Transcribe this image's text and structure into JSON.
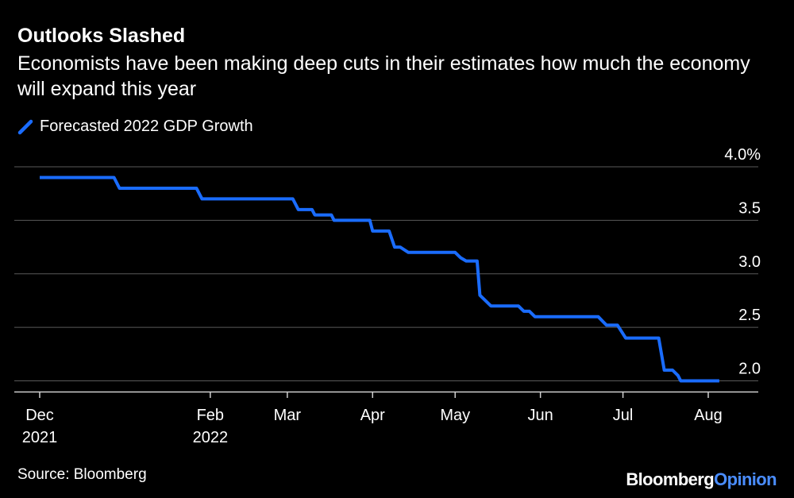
{
  "header": {
    "title": "Outlooks Slashed",
    "subtitle": "Economists have been making deep cuts in their estimates how much the economy will expand this year"
  },
  "legend": {
    "label": "Forecasted 2022 GDP Growth"
  },
  "footer": {
    "source": "Source: Bloomberg",
    "brand_part1": "Bloomberg",
    "brand_part2": "Opinion"
  },
  "colors": {
    "background": "#000000",
    "series": "#1a6cff",
    "grid": "#5a5a5a",
    "text": "#ffffff"
  },
  "chart_data": {
    "type": "line",
    "step": true,
    "title": "Outlooks Slashed",
    "subtitle": "Economists have been making deep cuts in their estimates how much the economy will expand this year",
    "xlabel": "",
    "ylabel": "",
    "y_axis_position": "right",
    "ylim": [
      1.9,
      4.0
    ],
    "y_ticks": [
      {
        "value": 2.0,
        "label": "2.0"
      },
      {
        "value": 2.5,
        "label": "2.5"
      },
      {
        "value": 3.0,
        "label": "3.0"
      },
      {
        "value": 3.5,
        "label": "3.5"
      },
      {
        "value": 4.0,
        "label": "4.0%"
      }
    ],
    "xlim": [
      "2021-11-30",
      "2022-08-31"
    ],
    "x_ticks": [
      {
        "date": "2021-12-01",
        "line1": "Dec",
        "line2": "2021"
      },
      {
        "date": "2022-02-01",
        "line1": "Feb",
        "line2": "2022"
      },
      {
        "date": "2022-03-01",
        "line1": "Mar",
        "line2": ""
      },
      {
        "date": "2022-04-01",
        "line1": "Apr",
        "line2": ""
      },
      {
        "date": "2022-05-01",
        "line1": "May",
        "line2": ""
      },
      {
        "date": "2022-06-01",
        "line1": "Jun",
        "line2": ""
      },
      {
        "date": "2022-07-01",
        "line1": "Jul",
        "line2": ""
      },
      {
        "date": "2022-08-01",
        "line1": "Aug",
        "line2": ""
      }
    ],
    "grid": true,
    "legend_position": "top-left",
    "series": [
      {
        "name": "Forecasted 2022 GDP Growth",
        "color": "#1a6cff",
        "points": [
          {
            "x": "2021-12-01",
            "y": 3.9
          },
          {
            "x": "2021-12-28",
            "y": 3.9
          },
          {
            "x": "2021-12-30",
            "y": 3.8
          },
          {
            "x": "2022-01-27",
            "y": 3.8
          },
          {
            "x": "2022-01-29",
            "y": 3.7
          },
          {
            "x": "2022-03-03",
            "y": 3.7
          },
          {
            "x": "2022-03-05",
            "y": 3.6
          },
          {
            "x": "2022-03-10",
            "y": 3.6
          },
          {
            "x": "2022-03-11",
            "y": 3.55
          },
          {
            "x": "2022-03-17",
            "y": 3.55
          },
          {
            "x": "2022-03-18",
            "y": 3.5
          },
          {
            "x": "2022-03-31",
            "y": 3.5
          },
          {
            "x": "2022-04-01",
            "y": 3.4
          },
          {
            "x": "2022-04-07",
            "y": 3.4
          },
          {
            "x": "2022-04-09",
            "y": 3.25
          },
          {
            "x": "2022-04-11",
            "y": 3.25
          },
          {
            "x": "2022-04-14",
            "y": 3.2
          },
          {
            "x": "2022-05-01",
            "y": 3.2
          },
          {
            "x": "2022-05-03",
            "y": 3.15
          },
          {
            "x": "2022-05-05",
            "y": 3.12
          },
          {
            "x": "2022-05-09",
            "y": 3.12
          },
          {
            "x": "2022-05-10",
            "y": 2.8
          },
          {
            "x": "2022-05-14",
            "y": 2.7
          },
          {
            "x": "2022-05-24",
            "y": 2.7
          },
          {
            "x": "2022-05-26",
            "y": 2.65
          },
          {
            "x": "2022-05-28",
            "y": 2.65
          },
          {
            "x": "2022-05-30",
            "y": 2.6
          },
          {
            "x": "2022-06-22",
            "y": 2.6
          },
          {
            "x": "2022-06-25",
            "y": 2.52
          },
          {
            "x": "2022-06-29",
            "y": 2.52
          },
          {
            "x": "2022-07-02",
            "y": 2.4
          },
          {
            "x": "2022-07-14",
            "y": 2.4
          },
          {
            "x": "2022-07-16",
            "y": 2.1
          },
          {
            "x": "2022-07-19",
            "y": 2.1
          },
          {
            "x": "2022-07-21",
            "y": 2.05
          },
          {
            "x": "2022-07-22",
            "y": 2.0
          },
          {
            "x": "2022-08-05",
            "y": 2.0
          }
        ]
      }
    ]
  }
}
